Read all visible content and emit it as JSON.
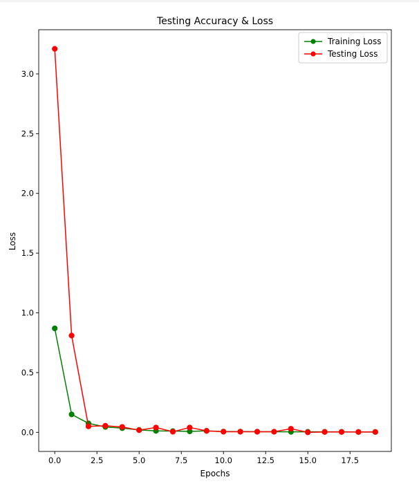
{
  "chart_data": {
    "type": "line",
    "title": "Testing Accuracy & Loss",
    "xlabel": "Epochs",
    "ylabel": "Loss",
    "xlim": [
      -0.95,
      19.95
    ],
    "ylim": [
      -0.16,
      3.37
    ],
    "xticks": [
      0.0,
      2.5,
      5.0,
      7.5,
      10.0,
      12.5,
      15.0,
      17.5
    ],
    "xtick_labels": [
      "0.0",
      "2.5",
      "5.0",
      "7.5",
      "10.0",
      "12.5",
      "15.0",
      "17.5"
    ],
    "yticks": [
      0.0,
      0.5,
      1.0,
      1.5,
      2.0,
      2.5,
      3.0
    ],
    "ytick_labels": [
      "0.0",
      "0.5",
      "1.0",
      "1.5",
      "2.0",
      "2.5",
      "3.0"
    ],
    "grid": false,
    "legend_position": "top-right",
    "x": [
      0,
      1,
      2,
      3,
      4,
      5,
      6,
      7,
      8,
      9,
      10,
      11,
      12,
      13,
      14,
      15,
      16,
      17,
      18,
      19
    ],
    "series": [
      {
        "name": "Training Loss",
        "color": "#008000",
        "values": [
          0.87,
          0.15,
          0.075,
          0.045,
          0.035,
          0.02,
          0.012,
          0.01,
          0.008,
          0.012,
          0.006,
          0.006,
          0.005,
          0.005,
          0.004,
          0.004,
          0.004,
          0.004,
          0.003,
          0.003
        ]
      },
      {
        "name": "Testing Loss",
        "color": "#ff0000",
        "values": [
          3.21,
          0.81,
          0.05,
          0.055,
          0.045,
          0.018,
          0.04,
          0.005,
          0.04,
          0.012,
          0.005,
          0.005,
          0.005,
          0.005,
          0.03,
          0.0,
          0.003,
          0.003,
          0.003,
          0.003
        ]
      }
    ]
  }
}
